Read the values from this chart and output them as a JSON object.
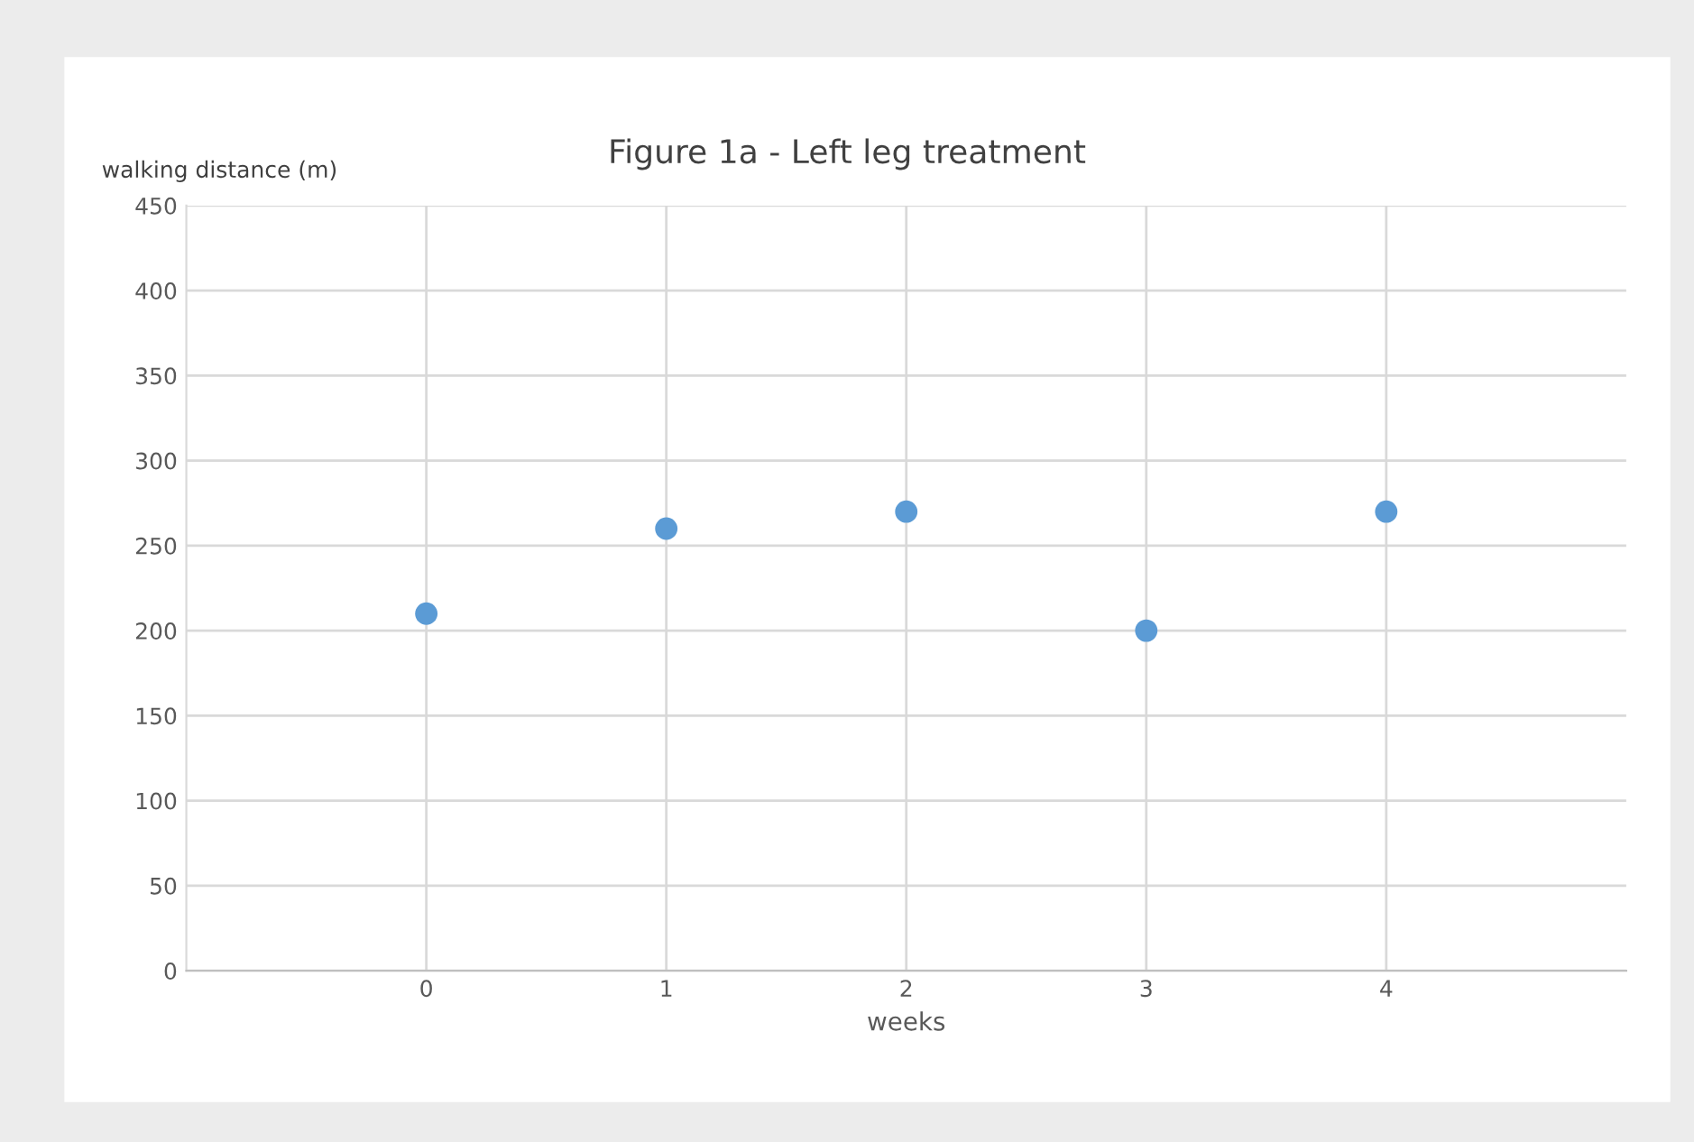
{
  "chart_data": {
    "type": "scatter",
    "title": "Figure 1a - Left leg treatment",
    "xlabel": "weeks",
    "ylabel": "walking distance (m)",
    "x": [
      0,
      1,
      2,
      3,
      4
    ],
    "series": [
      {
        "color": "#5b9bd5",
        "values": [
          210,
          260,
          270,
          200,
          270
        ]
      }
    ],
    "xlim": [
      -1,
      5
    ],
    "xticks": [
      0,
      1,
      2,
      3,
      4
    ],
    "ylim": [
      0,
      450
    ],
    "yticks": [
      0,
      50,
      100,
      150,
      200,
      250,
      300,
      350,
      400,
      450
    ],
    "grid": true,
    "marker": "circle"
  }
}
